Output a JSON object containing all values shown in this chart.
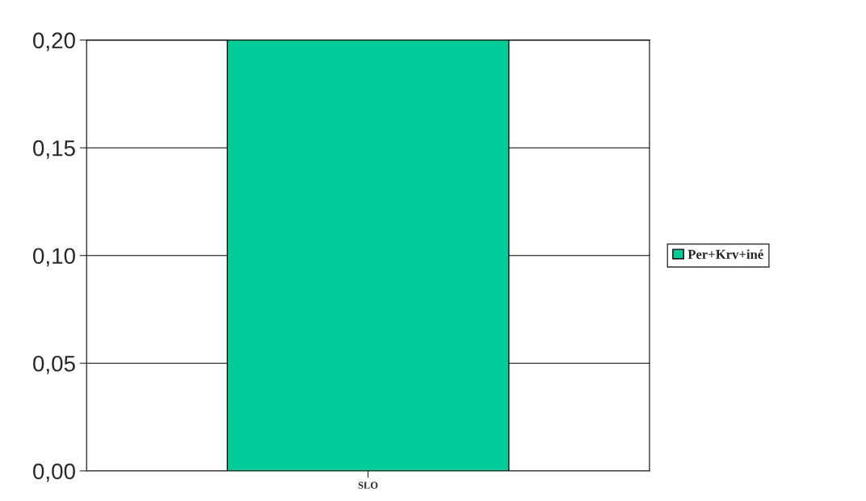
{
  "chart_data": {
    "type": "bar",
    "categories": [
      "SLO"
    ],
    "series": [
      {
        "name": "Per+Krv+iné",
        "color": "#00cc99",
        "values": [
          0.2
        ]
      }
    ],
    "ylim": [
      0,
      0.2
    ],
    "yticks": [
      {
        "value": 0,
        "label": "0,00"
      },
      {
        "value": 0.05,
        "label": "0,05"
      },
      {
        "value": 0.1,
        "label": "0,10"
      },
      {
        "value": 0.15,
        "label": "0,15"
      },
      {
        "value": 0.2,
        "label": "0,20"
      }
    ],
    "grid": "y",
    "legend": "right"
  }
}
